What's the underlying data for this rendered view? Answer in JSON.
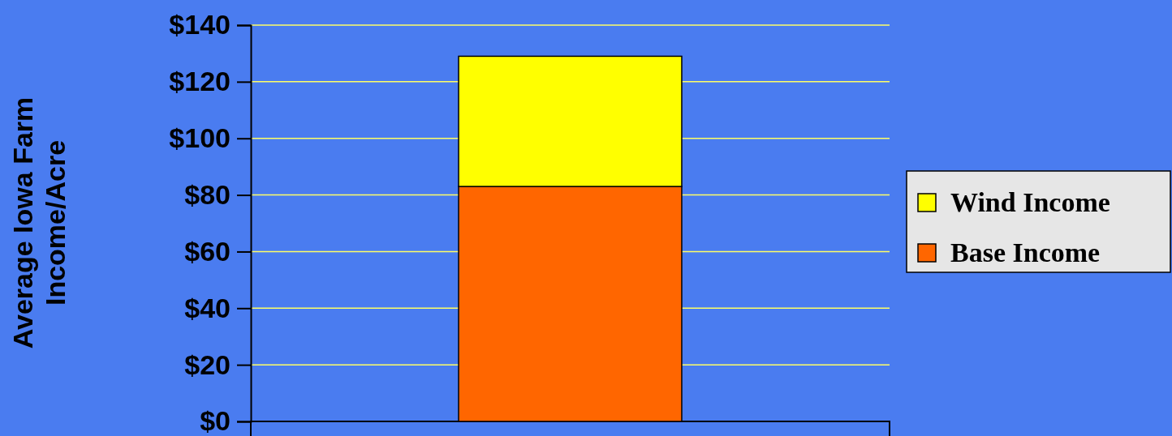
{
  "chart_data": {
    "type": "bar",
    "stacked": true,
    "ylabel": "Average Iowa Farm\nIncome/Acre",
    "categories": [
      null
    ],
    "series": [
      {
        "name": "Base Income",
        "color": "#ff6600",
        "values": [
          83
        ]
      },
      {
        "name": "Wind Income",
        "color": "#ffff00",
        "values": [
          46
        ]
      }
    ],
    "ylim": [
      0,
      140
    ],
    "yticks": [
      {
        "value": 0,
        "label": "$0"
      },
      {
        "value": 20,
        "label": "$20"
      },
      {
        "value": 40,
        "label": "$40"
      },
      {
        "value": 60,
        "label": "$60"
      },
      {
        "value": 80,
        "label": "$80"
      },
      {
        "value": 100,
        "label": "$100"
      },
      {
        "value": 120,
        "label": "$120"
      },
      {
        "value": 140,
        "label": "$140"
      }
    ],
    "grid": "y",
    "legend": "right"
  }
}
